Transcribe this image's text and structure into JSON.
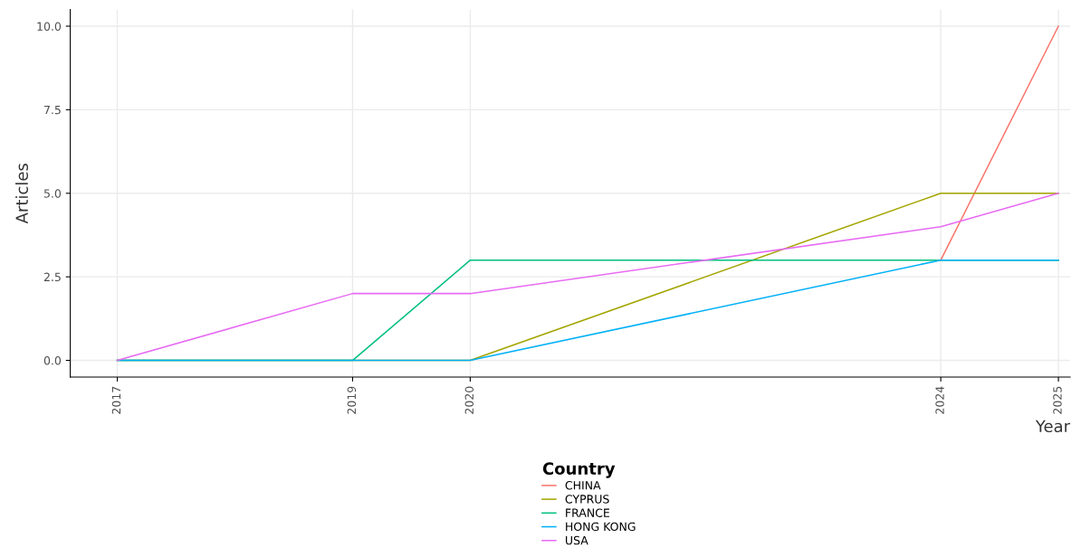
{
  "chart_data": {
    "type": "line",
    "xlabel": "Year",
    "ylabel": "Articles",
    "legend_title": "Country",
    "x": [
      2017,
      2019,
      2020,
      2024,
      2025
    ],
    "series": [
      {
        "name": "CHINA",
        "color": "#f8766d",
        "values": [
          null,
          null,
          null,
          3,
          10
        ]
      },
      {
        "name": "CYPRUS",
        "color": "#a3a500",
        "values": [
          0,
          0,
          0,
          5,
          5
        ]
      },
      {
        "name": "FRANCE",
        "color": "#00bf7d",
        "values": [
          0,
          0,
          3,
          3,
          3
        ]
      },
      {
        "name": "HONG KONG",
        "color": "#00b0f6",
        "values": [
          0,
          0,
          0,
          3,
          3
        ]
      },
      {
        "name": "USA",
        "color": "#e76bf3",
        "values": [
          0,
          2,
          2,
          4,
          5
        ]
      }
    ],
    "xlim": [
      2016.6,
      2025.1
    ],
    "xticks": [
      2017,
      2019,
      2020,
      2024,
      2025
    ],
    "ylim": [
      -0.5,
      10.5
    ],
    "yticks": [
      {
        "value": 0,
        "label": "0.0"
      },
      {
        "value": 2.5,
        "label": "2.5"
      },
      {
        "value": 5,
        "label": "5.0"
      },
      {
        "value": 7.5,
        "label": "7.5"
      },
      {
        "value": 10,
        "label": "10.0"
      }
    ],
    "grid": true,
    "legend": "bottom",
    "marker": "none",
    "line_style": "solid"
  }
}
